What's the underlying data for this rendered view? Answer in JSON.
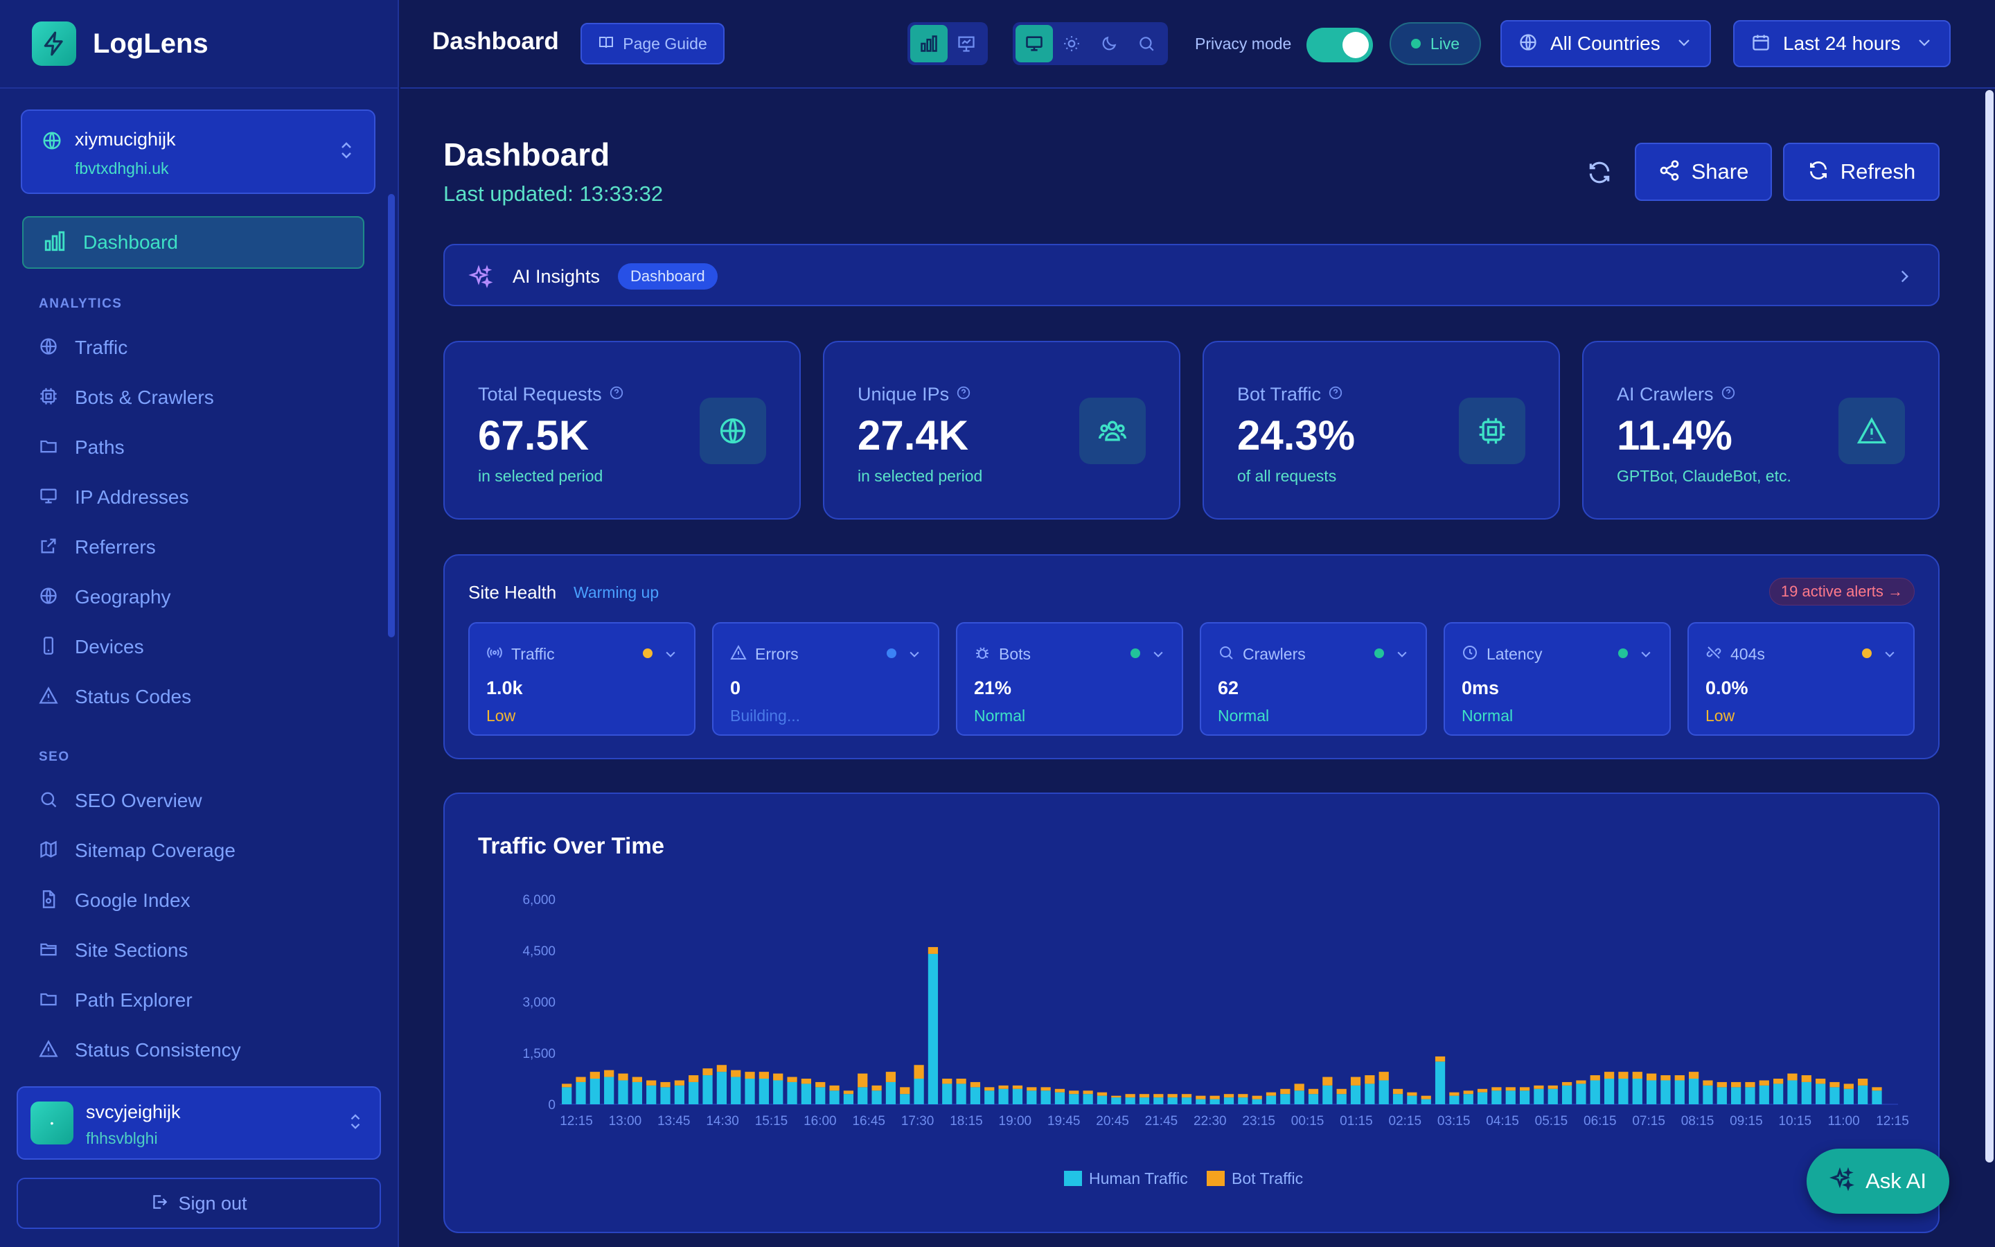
{
  "brand": {
    "name": "LogLens"
  },
  "site": {
    "name": "xiymucighijk",
    "domain": "fbvtxdhghi.uk"
  },
  "nav": {
    "active": "Dashboard",
    "analytics_header": "ANALYTICS",
    "analytics": [
      {
        "label": "Traffic",
        "icon": "globe-icon"
      },
      {
        "label": "Bots & Crawlers",
        "icon": "cpu-icon"
      },
      {
        "label": "Paths",
        "icon": "folder-icon"
      },
      {
        "label": "IP Addresses",
        "icon": "monitor-icon"
      },
      {
        "label": "Referrers",
        "icon": "external-link-icon"
      },
      {
        "label": "Geography",
        "icon": "globe-icon"
      },
      {
        "label": "Devices",
        "icon": "smartphone-icon"
      },
      {
        "label": "Status Codes",
        "icon": "alert-triangle-icon"
      }
    ],
    "seo_header": "SEO",
    "seo": [
      {
        "label": "SEO Overview",
        "icon": "search-icon"
      },
      {
        "label": "Sitemap Coverage",
        "icon": "map-icon"
      },
      {
        "label": "Google Index",
        "icon": "file-icon"
      },
      {
        "label": "Site Sections",
        "icon": "folder-icon"
      },
      {
        "label": "Path Explorer",
        "icon": "folder-icon"
      },
      {
        "label": "Status Consistency",
        "icon": "alert-triangle-icon"
      }
    ]
  },
  "user": {
    "name": "svcyjeighijk",
    "email": "fhhsvblghi",
    "avatar_text": "•"
  },
  "signout_label": "Sign out",
  "topbar": {
    "title": "Dashboard",
    "page_guide": "Page Guide",
    "privacy_label": "Privacy mode",
    "privacy_on": true,
    "live_label": "Live",
    "country": "All Countries",
    "range": "Last 24 hours"
  },
  "header": {
    "title": "Dashboard",
    "last_updated": "Last updated: 13:33:32",
    "share": "Share",
    "refresh": "Refresh"
  },
  "insights": {
    "label": "AI Insights",
    "tag": "Dashboard"
  },
  "stats": [
    {
      "title": "Total Requests",
      "value": "67.5K",
      "sub": "in selected period",
      "icon": "globe-icon"
    },
    {
      "title": "Unique IPs",
      "value": "27.4K",
      "sub": "in selected period",
      "icon": "users-icon"
    },
    {
      "title": "Bot Traffic",
      "value": "24.3%",
      "sub": "of all requests",
      "icon": "cpu-icon"
    },
    {
      "title": "AI Crawlers",
      "value": "11.4%",
      "sub": "GPTBot, ClaudeBot, etc.",
      "icon": "alert-triangle-icon"
    }
  ],
  "health": {
    "title": "Site Health",
    "status": "Warming up",
    "alerts": "19 active alerts →",
    "cards": [
      {
        "label": "Traffic",
        "value": "1.0k",
        "sub": "Low",
        "dot": "#f5b82e",
        "subcolor": "#f5b82e",
        "icon": "radio-icon"
      },
      {
        "label": "Errors",
        "value": "0",
        "sub": "Building...",
        "dot": "#3b82f6",
        "subcolor": "#4a7ae8",
        "icon": "alert-triangle-icon"
      },
      {
        "label": "Bots",
        "value": "21%",
        "sub": "Normal",
        "dot": "#22c39a",
        "subcolor": "#3ee2c6",
        "icon": "bug-icon"
      },
      {
        "label": "Crawlers",
        "value": "62",
        "sub": "Normal",
        "dot": "#22c39a",
        "subcolor": "#3ee2c6",
        "icon": "search-icon"
      },
      {
        "label": "Latency",
        "value": "0ms",
        "sub": "Normal",
        "dot": "#22c39a",
        "subcolor": "#3ee2c6",
        "icon": "clock-icon"
      },
      {
        "label": "404s",
        "value": "0.0%",
        "sub": "Low",
        "dot": "#f5b82e",
        "subcolor": "#f5b82e",
        "icon": "link-broken-icon"
      }
    ]
  },
  "ask_ai": "Ask AI",
  "chart_data": {
    "type": "bar",
    "stacked": true,
    "title": "Traffic Over Time",
    "ylim": [
      0,
      6000
    ],
    "yticks": [
      0,
      1500,
      3000,
      4500,
      6000
    ],
    "ytick_labels": [
      "0",
      "1,500",
      "3,000",
      "4,500",
      "6,000"
    ],
    "xtick_labels": [
      "12:15",
      "13:00",
      "13:45",
      "14:30",
      "15:15",
      "16:00",
      "16:45",
      "17:30",
      "18:15",
      "19:00",
      "19:45",
      "20:45",
      "21:45",
      "22:30",
      "23:15",
      "00:15",
      "01:15",
      "02:15",
      "03:15",
      "04:15",
      "05:15",
      "06:15",
      "07:15",
      "08:15",
      "09:15",
      "10:15",
      "11:00",
      "12:15"
    ],
    "legend": [
      "Human Traffic",
      "Bot Traffic"
    ],
    "colors": {
      "human": "#22c3e6",
      "bot": "#f5a21e"
    },
    "series": [
      {
        "name": "Human Traffic",
        "values": [
          500,
          650,
          750,
          800,
          700,
          650,
          550,
          500,
          550,
          650,
          850,
          950,
          800,
          750,
          750,
          700,
          650,
          600,
          500,
          400,
          300,
          500,
          400,
          650,
          300,
          750,
          4400,
          600,
          600,
          500,
          400,
          450,
          450,
          400,
          400,
          350,
          300,
          300,
          250,
          200,
          200,
          200,
          200,
          200,
          200,
          150,
          150,
          200,
          200,
          150,
          250,
          300,
          400,
          300,
          550,
          300,
          550,
          600,
          700,
          300,
          250,
          150,
          1250,
          250,
          300,
          350,
          400,
          400,
          400,
          450,
          450,
          550,
          600,
          700,
          750,
          750,
          750,
          700,
          700,
          700,
          750,
          550,
          500,
          500,
          500,
          550,
          600,
          700,
          650,
          600,
          500,
          450,
          550,
          400,
          0
        ]
      },
      {
        "name": "Bot Traffic",
        "values": [
          100,
          150,
          200,
          200,
          200,
          150,
          150,
          150,
          150,
          200,
          200,
          200,
          200,
          200,
          200,
          200,
          150,
          150,
          150,
          150,
          100,
          400,
          150,
          300,
          200,
          400,
          200,
          150,
          150,
          150,
          100,
          100,
          100,
          100,
          100,
          100,
          100,
          100,
          100,
          50,
          100,
          100,
          100,
          100,
          100,
          100,
          100,
          100,
          100,
          100,
          100,
          150,
          200,
          150,
          250,
          150,
          250,
          250,
          250,
          150,
          100,
          100,
          150,
          100,
          100,
          100,
          100,
          100,
          100,
          100,
          100,
          100,
          100,
          150,
          200,
          200,
          200,
          200,
          150,
          150,
          200,
          150,
          150,
          150,
          150,
          150,
          150,
          200,
          200,
          150,
          150,
          150,
          200,
          100,
          0
        ]
      }
    ]
  }
}
